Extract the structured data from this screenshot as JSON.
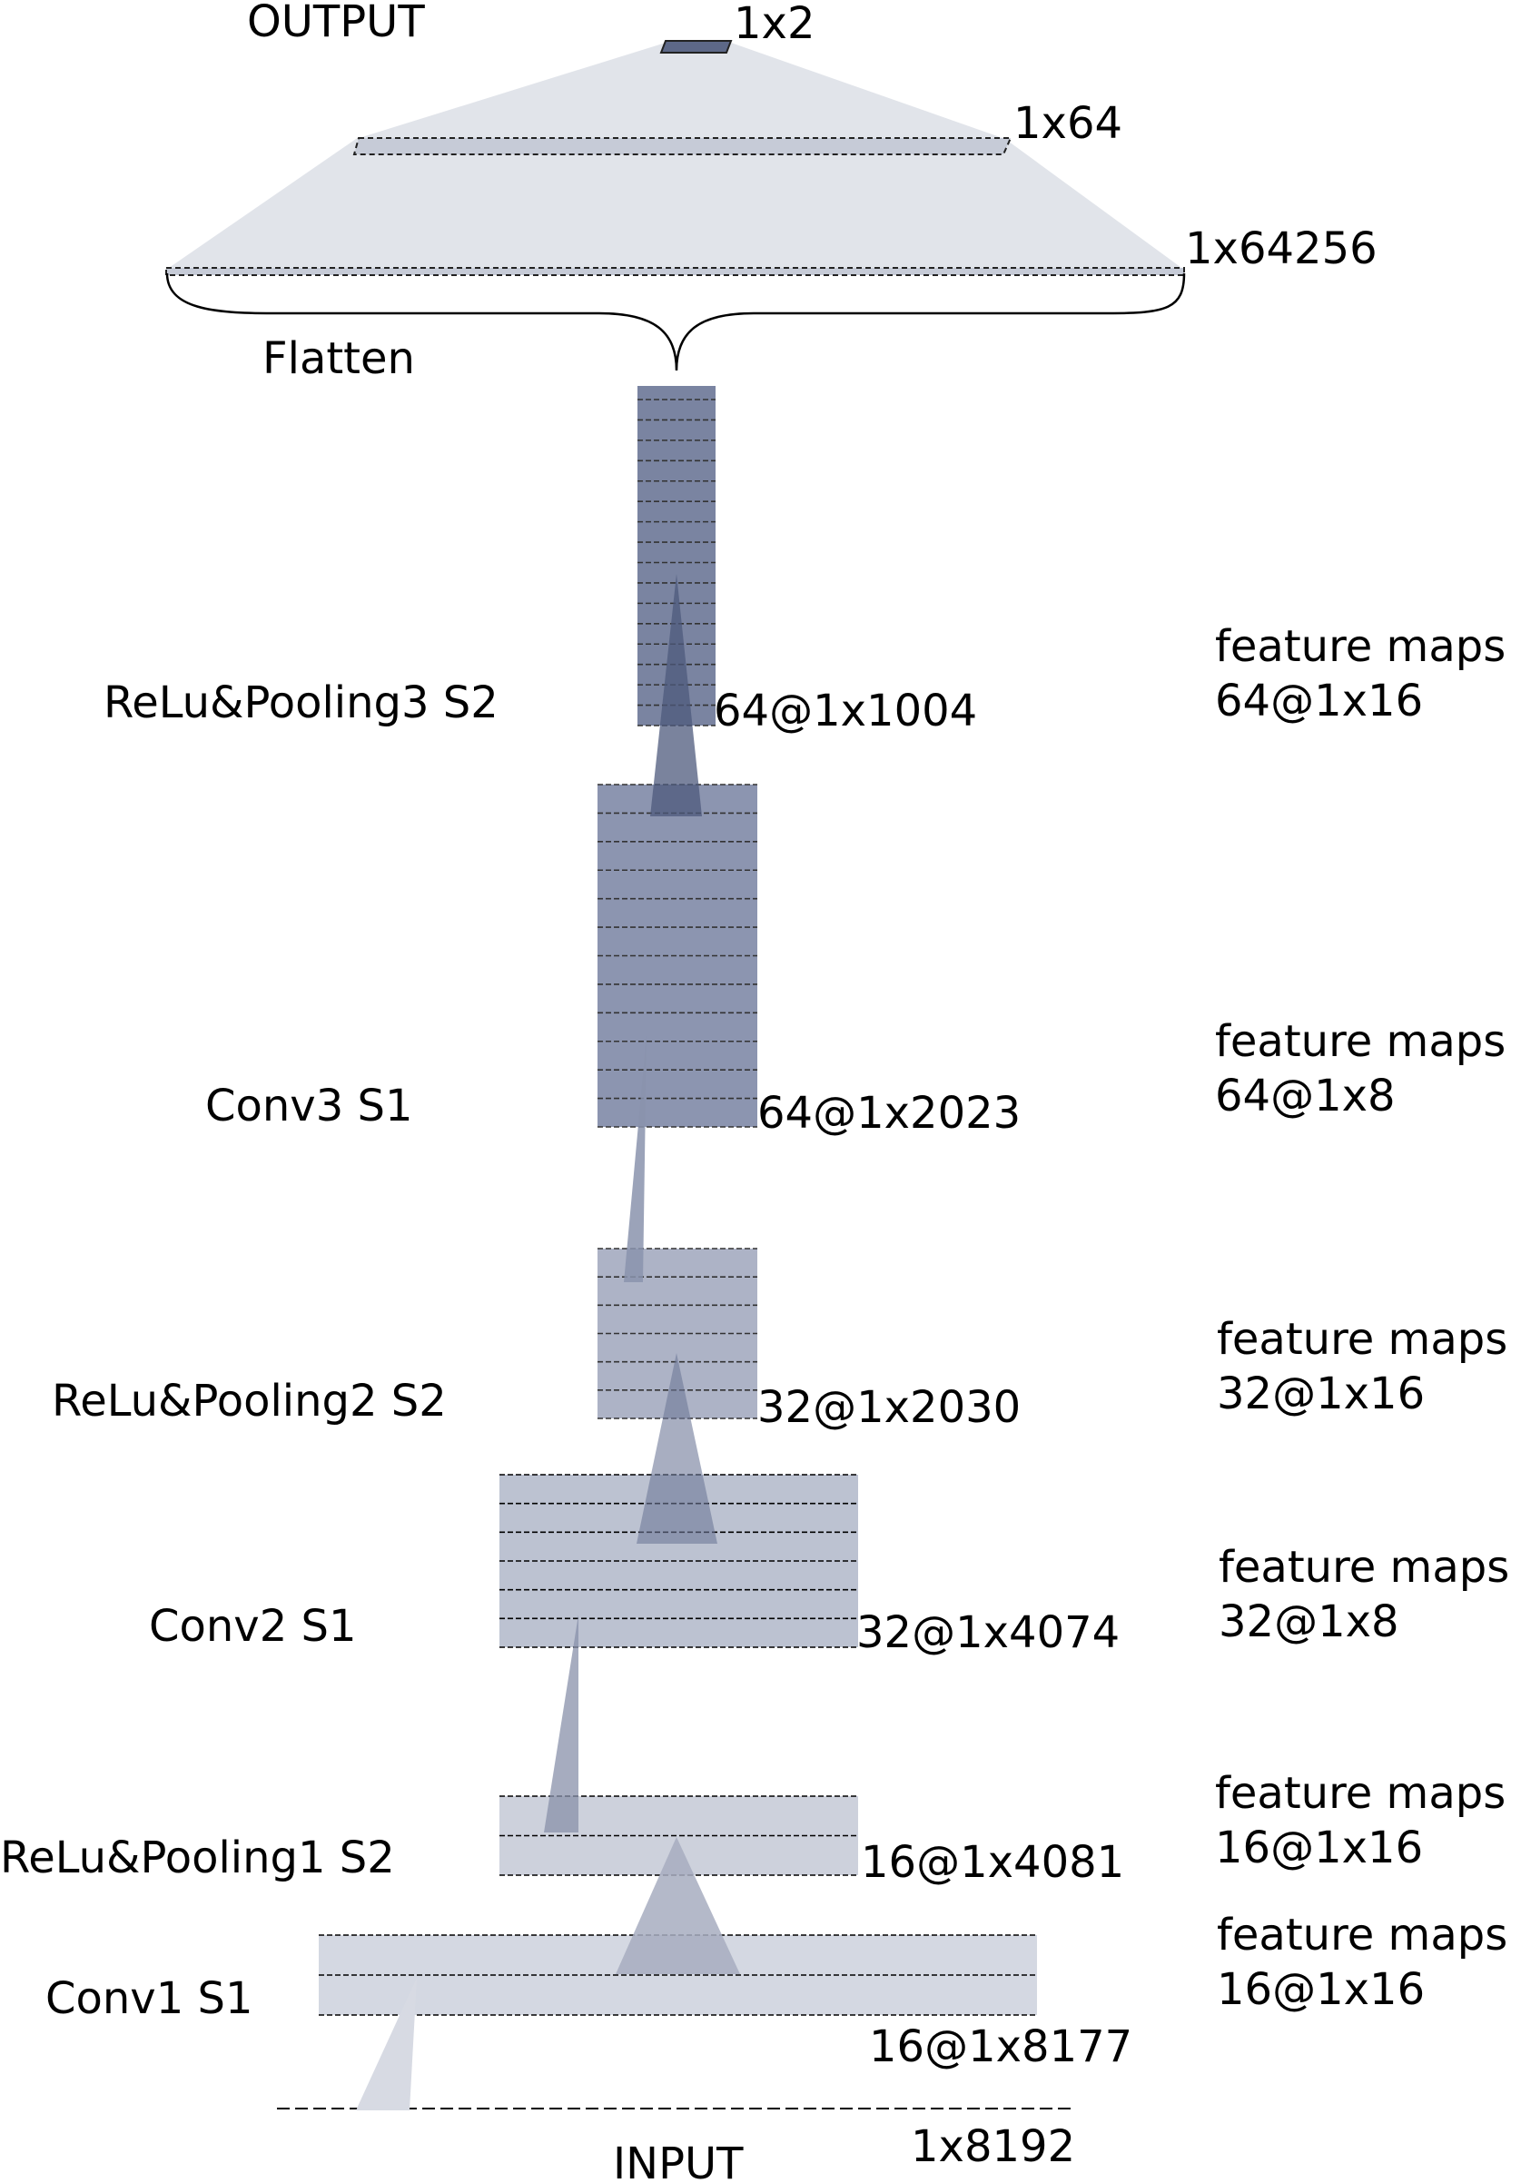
{
  "colors": {
    "funnel": "#e1e4ea",
    "conv1": "#d4d8e2",
    "pool1": "#cdd1dc",
    "conv2": "#bcc2d1",
    "pool2": "#adb3c6",
    "conv3": "#8c95b0",
    "pool3": "#7a84a1",
    "dense": "#c6cbd7",
    "output": "#5d6887",
    "stroke": "#222222"
  },
  "labels": {
    "output": "OUTPUT",
    "flatten": "Flatten",
    "input": "INPUT"
  },
  "dims": {
    "out": "1x2",
    "dense": "1x64",
    "flat": "1x64256",
    "pool3": "64@1x1004",
    "conv3": "64@1x2023",
    "pool2": "32@1x2030",
    "conv2": "32@1x4074",
    "pool1": "16@1x4081",
    "conv1": "16@1x8177",
    "input": "1x8192"
  },
  "layers": {
    "pool3": "ReLu&Pooling3 S2",
    "conv3": "Conv3 S1",
    "pool2": "ReLu&Pooling2 S2",
    "conv2": "Conv2 S1",
    "pool1": "ReLu&Pooling1 S2",
    "conv1": "Conv1 S1"
  },
  "feature_maps": {
    "pool3": [
      "feature maps",
      "64@1x16"
    ],
    "conv3": [
      "feature maps",
      "64@1x8"
    ],
    "pool2": [
      "feature maps",
      "32@1x16"
    ],
    "conv2": [
      "feature maps",
      "32@1x8"
    ],
    "pool1": [
      "feature maps",
      "16@1x16"
    ],
    "conv1": [
      "feature maps",
      "16@1x16"
    ]
  }
}
